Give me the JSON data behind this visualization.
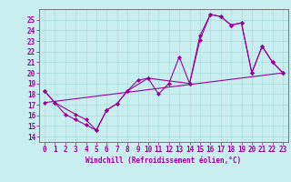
{
  "xlabel": "Windchill (Refroidissement éolien,°C)",
  "bg_color": "#c8eef0",
  "line_color": "#990099",
  "grid_color": "#aadddd",
  "xlim": [
    -0.5,
    23.5
  ],
  "ylim": [
    13.5,
    26.0
  ],
  "xticks": [
    0,
    1,
    2,
    3,
    4,
    5,
    6,
    7,
    8,
    9,
    10,
    11,
    12,
    13,
    14,
    15,
    16,
    17,
    18,
    19,
    20,
    21,
    22,
    23
  ],
  "yticks": [
    14,
    15,
    16,
    17,
    18,
    19,
    20,
    21,
    22,
    23,
    24,
    25
  ],
  "line1_x": [
    0,
    1,
    2,
    3,
    4,
    5,
    6,
    7,
    8,
    9,
    10,
    11,
    12,
    13,
    14,
    15,
    16,
    17,
    18,
    19,
    20,
    21,
    22,
    23
  ],
  "line1_y": [
    18.3,
    17.2,
    16.1,
    15.6,
    15.1,
    14.6,
    16.5,
    17.1,
    18.3,
    19.3,
    19.5,
    18.0,
    19.0,
    21.5,
    19.0,
    23.1,
    25.5,
    25.3,
    24.5,
    24.7,
    20.0,
    22.5,
    21.0,
    20.0
  ],
  "line2_x": [
    0,
    1,
    3,
    4,
    5,
    6,
    7,
    8,
    10,
    14,
    15,
    16,
    17,
    18,
    19,
    20,
    21,
    22,
    23
  ],
  "line2_y": [
    18.3,
    17.2,
    16.1,
    15.6,
    14.6,
    16.5,
    17.1,
    18.3,
    19.5,
    19.0,
    23.5,
    25.5,
    25.3,
    24.5,
    24.7,
    20.0,
    22.5,
    21.0,
    20.0
  ],
  "line3_x": [
    0,
    23
  ],
  "line3_y": [
    17.2,
    20.0
  ],
  "tick_fontsize": 5.5,
  "xlabel_fontsize": 5.5
}
